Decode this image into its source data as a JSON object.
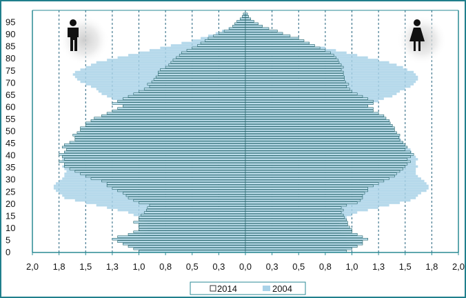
{
  "chart_data": {
    "type": "bar",
    "orientation": "horizontal",
    "subtype": "population-pyramid",
    "unit": "percent of population",
    "y_ticks": [
      "0",
      "5",
      "10",
      "15",
      "20",
      "25",
      "30",
      "35",
      "40",
      "45",
      "50",
      "55",
      "60",
      "65",
      "70",
      "75",
      "80",
      "85",
      "90",
      "95"
    ],
    "x_ticks": [
      "2,0",
      "1,8",
      "1,5",
      "1,3",
      "1,0",
      "0,8",
      "0,5",
      "0,3",
      "0,0",
      "0,3",
      "0,5",
      "0,8",
      "1,0",
      "1,3",
      "1,5",
      "1,8",
      "2,0"
    ],
    "xlim": [
      -2.0,
      2.0
    ],
    "ylim": [
      0,
      100
    ],
    "grid": "vertical dashed",
    "legend_position": "bottom-center",
    "sides": {
      "left": "male-icon",
      "right": "female-icon"
    },
    "ages": [
      0,
      1,
      2,
      3,
      4,
      5,
      6,
      7,
      8,
      9,
      10,
      11,
      12,
      13,
      14,
      15,
      16,
      17,
      18,
      19,
      20,
      21,
      22,
      23,
      24,
      25,
      26,
      27,
      28,
      29,
      30,
      31,
      32,
      33,
      34,
      35,
      36,
      37,
      38,
      39,
      40,
      41,
      42,
      43,
      44,
      45,
      46,
      47,
      48,
      49,
      50,
      51,
      52,
      53,
      54,
      55,
      56,
      57,
      58,
      59,
      60,
      61,
      62,
      63,
      64,
      65,
      66,
      67,
      68,
      69,
      70,
      71,
      72,
      73,
      74,
      75,
      76,
      77,
      78,
      79,
      80,
      81,
      82,
      83,
      84,
      85,
      86,
      87,
      88,
      89,
      90,
      91,
      92,
      93,
      94,
      95,
      96,
      97,
      98
    ],
    "series": [
      {
        "name": "2014",
        "male": [
          1.0,
          1.05,
          1.1,
          1.15,
          1.2,
          1.25,
          1.2,
          1.1,
          1.05,
          1.0,
          1.0,
          1.0,
          1.05,
          1.0,
          1.0,
          0.98,
          0.95,
          0.93,
          0.92,
          0.9,
          1.0,
          1.05,
          1.1,
          1.12,
          1.15,
          1.2,
          1.25,
          1.3,
          1.3,
          1.35,
          1.45,
          1.5,
          1.55,
          1.6,
          1.65,
          1.7,
          1.7,
          1.75,
          1.7,
          1.72,
          1.75,
          1.7,
          1.68,
          1.72,
          1.7,
          1.65,
          1.6,
          1.6,
          1.62,
          1.58,
          1.55,
          1.55,
          1.5,
          1.5,
          1.45,
          1.42,
          1.35,
          1.3,
          1.25,
          1.2,
          1.15,
          1.25,
          1.2,
          1.15,
          1.1,
          1.05,
          1.0,
          0.95,
          0.9,
          0.92,
          0.88,
          0.86,
          0.84,
          0.82,
          0.82,
          0.8,
          0.75,
          0.72,
          0.7,
          0.68,
          0.65,
          0.62,
          0.6,
          0.55,
          0.5,
          0.45,
          0.42,
          0.38,
          0.35,
          0.3,
          0.25,
          0.2,
          0.15,
          0.12,
          0.1,
          0.08,
          0.05,
          0.03,
          0.02
        ],
        "female": [
          0.95,
          1.0,
          1.05,
          1.1,
          1.1,
          1.15,
          1.1,
          1.05,
          1.0,
          1.0,
          0.98,
          0.96,
          0.96,
          0.95,
          0.93,
          0.92,
          0.9,
          0.92,
          0.9,
          0.95,
          1.05,
          1.08,
          1.1,
          1.1,
          1.12,
          1.15,
          1.15,
          1.2,
          1.25,
          1.3,
          1.35,
          1.4,
          1.42,
          1.45,
          1.48,
          1.5,
          1.52,
          1.55,
          1.52,
          1.55,
          1.58,
          1.55,
          1.5,
          1.52,
          1.5,
          1.48,
          1.45,
          1.44,
          1.45,
          1.42,
          1.4,
          1.4,
          1.38,
          1.36,
          1.35,
          1.32,
          1.3,
          1.25,
          1.2,
          1.2,
          1.15,
          1.2,
          1.2,
          1.15,
          1.1,
          1.05,
          1.0,
          0.98,
          0.95,
          0.97,
          0.94,
          0.93,
          0.93,
          0.92,
          0.92,
          0.9,
          0.92,
          0.9,
          0.88,
          0.87,
          0.85,
          0.83,
          0.8,
          0.75,
          0.7,
          0.65,
          0.6,
          0.55,
          0.5,
          0.42,
          0.35,
          0.3,
          0.22,
          0.16,
          0.12,
          0.08,
          0.05,
          0.03,
          0.02
        ]
      },
      {
        "name": "2004",
        "male": [
          0.95,
          0.98,
          1.0,
          1.02,
          1.02,
          1.0,
          1.0,
          0.98,
          0.95,
          0.92,
          0.92,
          0.9,
          0.92,
          0.95,
          1.0,
          1.05,
          1.1,
          1.2,
          1.3,
          1.4,
          1.5,
          1.6,
          1.7,
          1.72,
          1.75,
          1.78,
          1.8,
          1.8,
          1.78,
          1.75,
          1.72,
          1.7,
          1.7,
          1.68,
          1.7,
          1.72,
          1.7,
          1.7,
          1.72,
          1.7,
          1.68,
          1.65,
          1.62,
          1.6,
          1.58,
          1.55,
          1.55,
          1.52,
          1.5,
          1.48,
          1.45,
          1.42,
          1.4,
          1.38,
          1.35,
          1.3,
          1.25,
          1.2,
          1.18,
          1.15,
          1.1,
          1.15,
          1.2,
          1.25,
          1.3,
          1.35,
          1.38,
          1.4,
          1.45,
          1.5,
          1.55,
          1.58,
          1.6,
          1.62,
          1.6,
          1.55,
          1.5,
          1.45,
          1.4,
          1.3,
          1.2,
          1.1,
          1.0,
          0.9,
          0.8,
          0.7,
          0.6,
          0.5,
          0.42,
          0.35,
          0.28,
          0.22,
          0.16,
          0.12,
          0.08,
          0.05,
          0.03,
          0.02,
          0.01
        ],
        "female": [
          0.9,
          0.92,
          0.95,
          0.97,
          0.97,
          0.95,
          0.95,
          0.93,
          0.9,
          0.88,
          0.88,
          0.86,
          0.88,
          0.9,
          0.95,
          1.0,
          1.05,
          1.15,
          1.25,
          1.35,
          1.45,
          1.55,
          1.6,
          1.62,
          1.65,
          1.7,
          1.72,
          1.72,
          1.7,
          1.68,
          1.65,
          1.62,
          1.6,
          1.6,
          1.6,
          1.62,
          1.6,
          1.6,
          1.62,
          1.6,
          1.58,
          1.56,
          1.55,
          1.52,
          1.5,
          1.48,
          1.46,
          1.45,
          1.42,
          1.4,
          1.38,
          1.35,
          1.33,
          1.3,
          1.28,
          1.25,
          1.22,
          1.2,
          1.18,
          1.15,
          1.12,
          1.18,
          1.25,
          1.3,
          1.38,
          1.42,
          1.45,
          1.5,
          1.55,
          1.58,
          1.6,
          1.62,
          1.62,
          1.6,
          1.58,
          1.52,
          1.48,
          1.42,
          1.35,
          1.25,
          1.15,
          1.05,
          0.95,
          0.85,
          0.75,
          0.65,
          0.55,
          0.45,
          0.38,
          0.3,
          0.22,
          0.16,
          0.11,
          0.08,
          0.05,
          0.03,
          0.02,
          0.01,
          0.01
        ]
      }
    ],
    "legend": [
      {
        "label": "2014",
        "swatch": "outlined"
      },
      {
        "label": "2004",
        "swatch": "filled"
      }
    ],
    "colors": {
      "frame": "#1f7f8c",
      "bar_fill": "#bfe0ee",
      "bar_edge": "#1f5f66",
      "bar_2004": "#a9d2e8",
      "grid": "#1f5f7a",
      "axis": "#2a8a94"
    }
  }
}
